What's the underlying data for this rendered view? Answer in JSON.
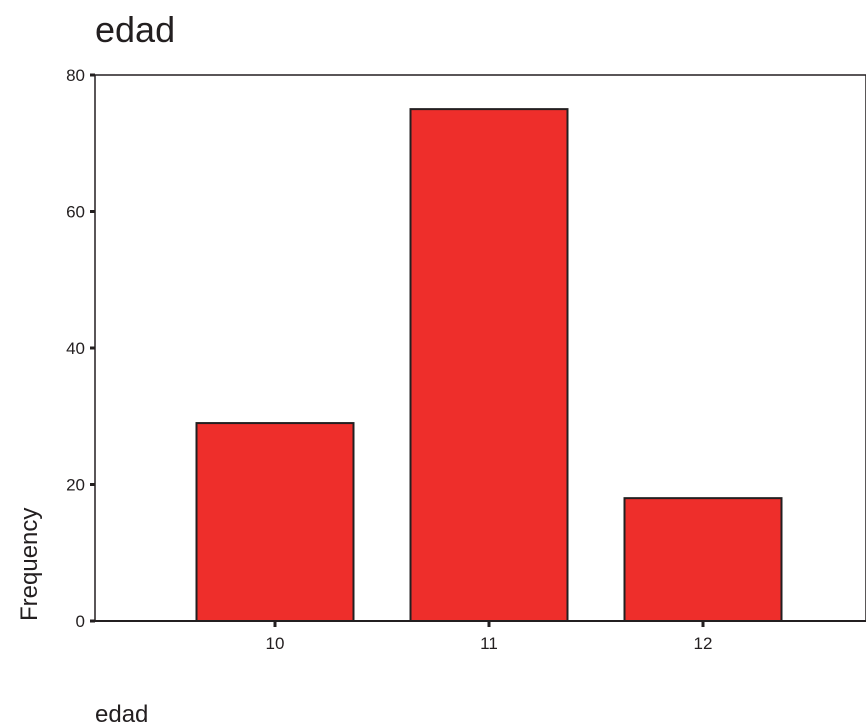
{
  "chart_data": {
    "type": "bar",
    "title": "edad",
    "xlabel": "edad",
    "ylabel": "Frequency",
    "categories": [
      "10",
      "11",
      "12"
    ],
    "values": [
      29,
      75,
      18
    ],
    "ylim": [
      0,
      80
    ],
    "yticks": [
      0,
      20,
      40,
      60,
      80
    ],
    "grid": false,
    "legend": "none",
    "bar_color": "#ee2e2b",
    "bar_stroke": "#231f20"
  }
}
